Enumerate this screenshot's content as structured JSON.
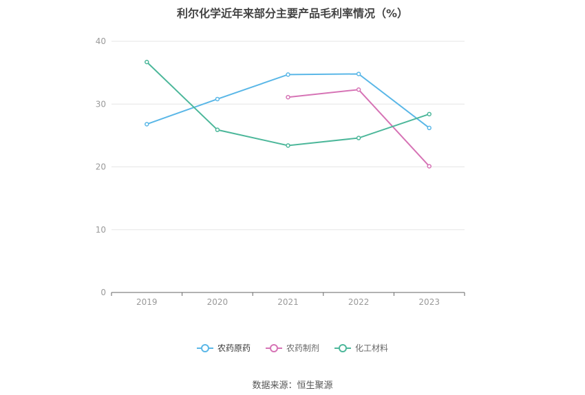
{
  "chart_data": {
    "type": "line",
    "title": "利尔化学近年来部分主要产品毛利率情况（%）",
    "categories": [
      "2019",
      "2020",
      "2021",
      "2022",
      "2023"
    ],
    "ylim": [
      0,
      40
    ],
    "yticks": [
      "0",
      "10",
      "20",
      "30",
      "40"
    ],
    "grid": true,
    "legend_position": "bottom",
    "series": [
      {
        "name": "农药原药",
        "color": "#5ab7e7",
        "values": [
          26.8,
          30.8,
          34.7,
          34.8,
          26.2
        ]
      },
      {
        "name": "农药制剂",
        "color": "#d673b5",
        "values": [
          null,
          null,
          31.1,
          32.3,
          20.1
        ]
      },
      {
        "name": "化工材料",
        "color": "#4cb79a",
        "values": [
          36.7,
          25.9,
          23.4,
          24.6,
          28.4
        ]
      }
    ],
    "source": "数据来源：恒生聚源"
  }
}
